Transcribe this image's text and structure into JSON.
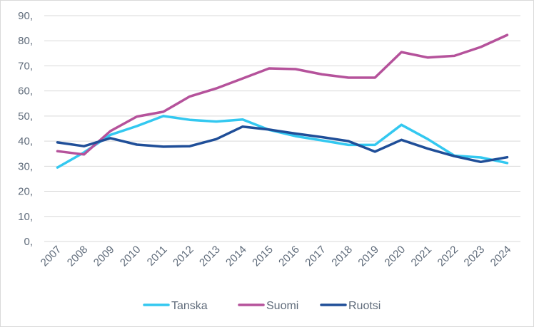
{
  "chart_data": {
    "type": "line",
    "title": "",
    "xlabel": "",
    "ylabel": "",
    "ylim": [
      0,
      90
    ],
    "ytick_step": 10,
    "ytick_labels": [
      "0,",
      "10,",
      "20,",
      "30,",
      "40,",
      "50,",
      "60,",
      "70,",
      "80,",
      "90,"
    ],
    "grid": true,
    "legend_position": "bottom",
    "categories": [
      "2007",
      "2008",
      "2009",
      "2010",
      "2011",
      "2012",
      "2013",
      "2014",
      "2015",
      "2016",
      "2017",
      "2018",
      "2019",
      "2020",
      "2021",
      "2022",
      "2023",
      "2024"
    ],
    "series": [
      {
        "name": "Tanska",
        "color": "#33c8f0",
        "values": [
          29.5,
          35.5,
          42.5,
          46,
          50,
          48.5,
          47.8,
          48.6,
          44.5,
          42,
          40.3,
          38.5,
          38.5,
          46.5,
          40.8,
          34.2,
          33.5,
          31.3
        ]
      },
      {
        "name": "Suomi",
        "color": "#b5529b",
        "values": [
          36,
          34.7,
          44,
          49.8,
          51.7,
          57.8,
          61,
          65,
          69,
          68.7,
          66.6,
          65.3,
          65.3,
          75.5,
          73.3,
          74,
          77.5,
          82.3
        ]
      },
      {
        "name": "Ruotsi",
        "color": "#1f4e98",
        "values": [
          39.5,
          38,
          41.2,
          38.6,
          37.8,
          38,
          40.8,
          45.8,
          44.6,
          43,
          41.6,
          40,
          35.8,
          40.5,
          37,
          34,
          31.7,
          33.6
        ]
      }
    ]
  }
}
